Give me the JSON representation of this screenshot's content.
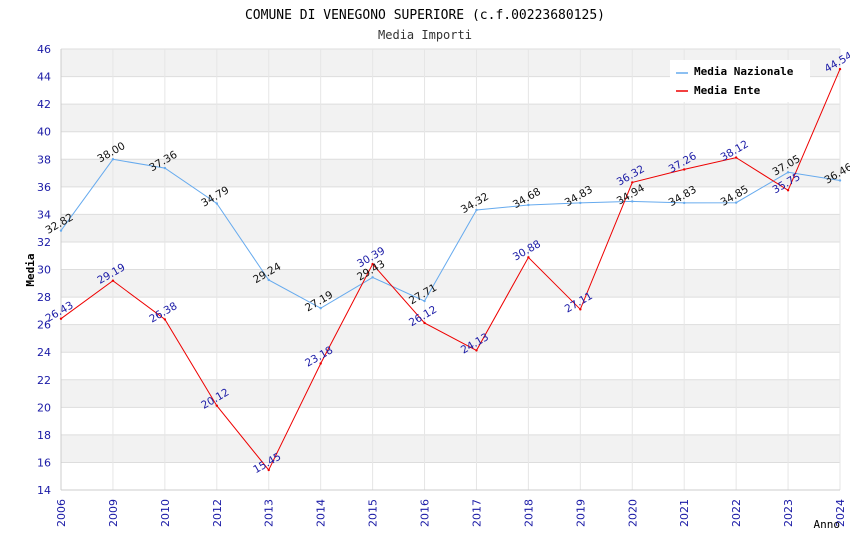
{
  "chart_data": {
    "type": "line",
    "title": "COMUNE DI VENEGONO SUPERIORE (c.f.00223680125)",
    "subtitle": "Media Importi",
    "xlabel": "Anno",
    "ylabel": "Media",
    "categories": [
      "2006",
      "2009",
      "2010",
      "2012",
      "2013",
      "2014",
      "2015",
      "2016",
      "2017",
      "2018",
      "2019",
      "2020",
      "2021",
      "2022",
      "2023",
      "2024"
    ],
    "ylim": [
      14,
      46
    ],
    "yticks": [
      14,
      16,
      18,
      20,
      22,
      24,
      26,
      28,
      30,
      32,
      34,
      36,
      38,
      40,
      42,
      44,
      46
    ],
    "grid": true,
    "legend_position": "top-right",
    "series": [
      {
        "name": "Media Nazionale",
        "color": "#66aaee",
        "labels": [
          "32.82",
          "38.00",
          "37.36",
          "34.79",
          "29.24",
          "27.19",
          "29.43",
          "27.71",
          "34.32",
          "34.68",
          "34.83",
          "34.94",
          "34.83",
          "34.85",
          "37.05",
          "36.46"
        ],
        "values": [
          32.82,
          38.0,
          37.36,
          34.79,
          29.24,
          27.19,
          29.43,
          27.71,
          34.32,
          34.68,
          34.83,
          34.94,
          34.83,
          34.85,
          37.05,
          36.46
        ]
      },
      {
        "name": "Media Ente",
        "color": "#ee0000",
        "labels": [
          "26.43",
          "29.19",
          "26.38",
          "20.12",
          "15.45",
          "23.18",
          "30.39",
          "26.12",
          "24.13",
          "30.88",
          "27.11",
          "36.32",
          "37.26",
          "38.12",
          "35.75",
          "44.54"
        ],
        "values": [
          26.43,
          29.19,
          26.38,
          20.12,
          15.45,
          23.18,
          30.39,
          26.12,
          24.13,
          30.88,
          27.11,
          36.32,
          37.26,
          38.12,
          35.75,
          44.54
        ]
      }
    ]
  }
}
